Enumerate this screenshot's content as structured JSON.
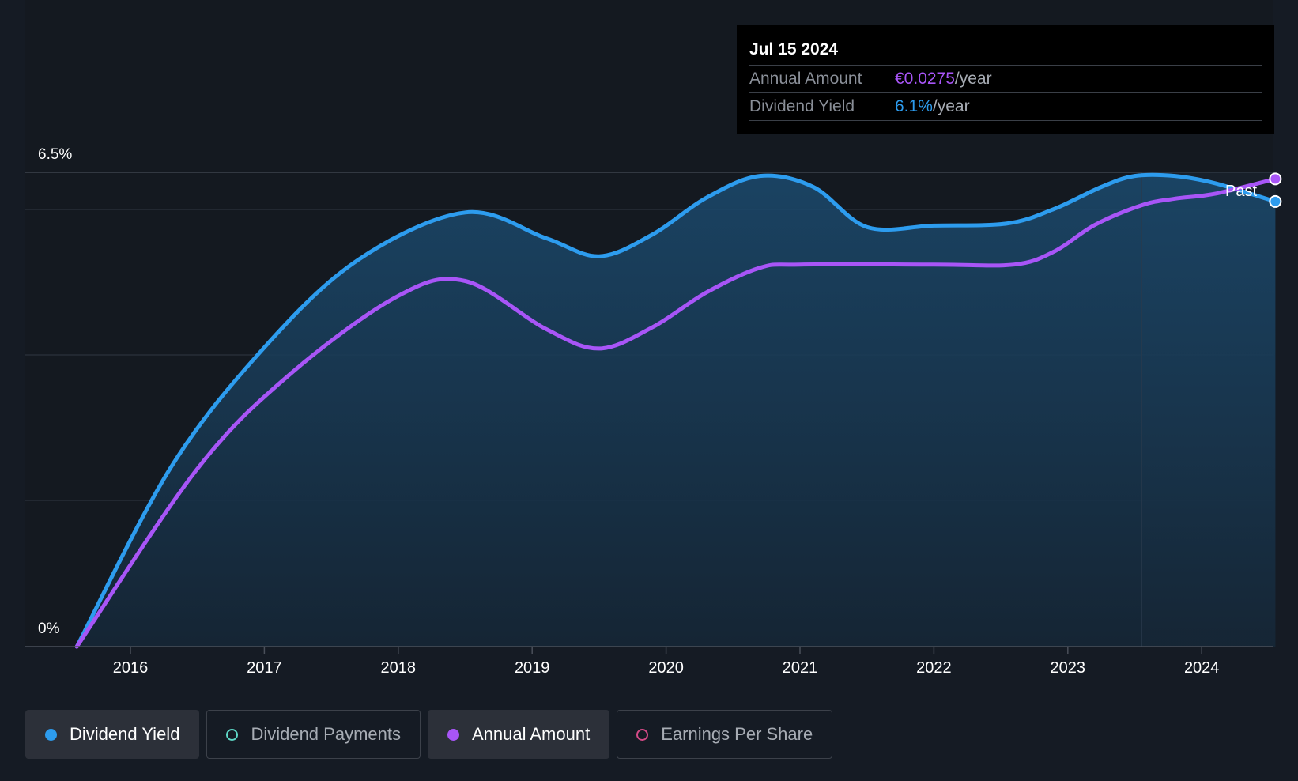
{
  "tooltip": {
    "date": "Jul 15 2024",
    "rows": [
      {
        "label": "Annual Amount",
        "value": "€0.0275",
        "unit": "/year"
      },
      {
        "label": "Dividend Yield",
        "value": "6.1%",
        "unit": "/year"
      }
    ]
  },
  "chart_data": {
    "type": "area",
    "y_tick_labels": [
      "6.5%",
      "0%"
    ],
    "ylim": [
      0,
      6.5
    ],
    "x_tick_labels": [
      "2016",
      "2017",
      "2018",
      "2019",
      "2020",
      "2021",
      "2022",
      "2023",
      "2024"
    ],
    "xlim": [
      2015.6,
      2024.55
    ],
    "past_marker": {
      "x": 2023.55,
      "label": "Past"
    },
    "grid": true,
    "series": [
      {
        "name": "Dividend Yield",
        "color": "#2d9cee",
        "unit": "%",
        "x": [
          2015.6,
          2016.3,
          2017.0,
          2017.7,
          2018.5,
          2019.1,
          2019.5,
          2019.9,
          2020.3,
          2020.7,
          2021.1,
          2021.5,
          2022.0,
          2022.55,
          2022.9,
          2023.25,
          2023.5,
          2023.8,
          2024.1,
          2024.55
        ],
        "y": [
          0,
          2.45,
          4.1,
          5.3,
          5.95,
          5.6,
          5.35,
          5.65,
          6.15,
          6.45,
          6.3,
          5.75,
          5.77,
          5.8,
          6.0,
          6.3,
          6.45,
          6.45,
          6.35,
          6.1
        ]
      },
      {
        "name": "Annual Amount",
        "color": "#a855f7",
        "unit": "€",
        "x": [
          2015.6,
          2016.5,
          2017.2,
          2018.0,
          2018.5,
          2019.1,
          2019.5,
          2019.9,
          2020.3,
          2020.7,
          2021.0,
          2022.0,
          2022.6,
          2022.9,
          2023.2,
          2023.55,
          2023.8,
          2024.1,
          2024.55
        ],
        "y": [
          0,
          0.0108,
          0.0166,
          0.0213,
          0.0222,
          0.0193,
          0.0181,
          0.0194,
          0.0215,
          0.023,
          0.0232,
          0.0232,
          0.0232,
          0.024,
          0.0256,
          0.0268,
          0.0272,
          0.0275,
          0.0284
        ],
        "ylim": [
          0,
          0.0288
        ]
      }
    ]
  },
  "legend": [
    {
      "label": "Dividend Yield",
      "color": "#2d9cee",
      "active": true
    },
    {
      "label": "Dividend Payments",
      "color": "#5ed8c7",
      "active": false
    },
    {
      "label": "Annual Amount",
      "color": "#a855f7",
      "active": true
    },
    {
      "label": "Earnings Per Share",
      "color": "#d44a87",
      "active": false
    }
  ]
}
